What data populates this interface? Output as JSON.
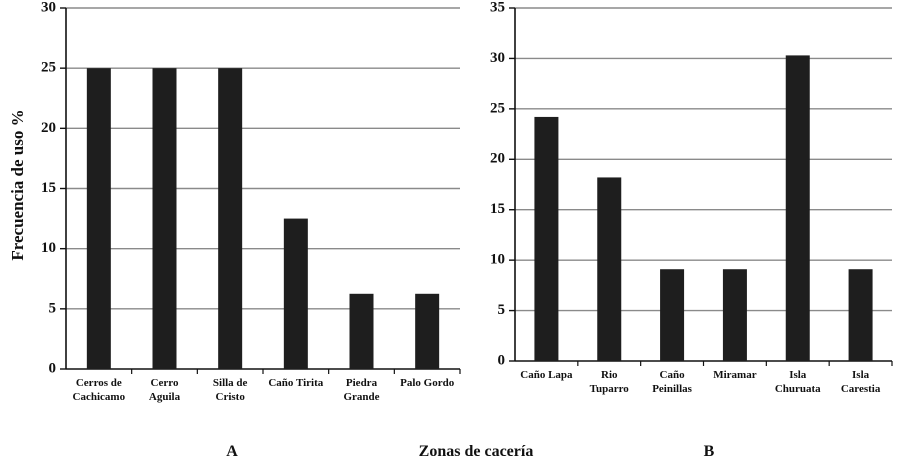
{
  "figure": {
    "ylabel": "Frecuencia de uso %",
    "xlabel": "Zonas de cacería"
  },
  "chart_data": [
    {
      "type": "bar",
      "panel": "A",
      "categories": [
        [
          "Cerros de",
          "Cachicamo"
        ],
        [
          "Cerro",
          "Aguila"
        ],
        [
          "Silla de",
          "Cristo"
        ],
        [
          "Caño Tirita"
        ],
        [
          "Piedra",
          "Grande"
        ],
        [
          "Palo Gordo"
        ]
      ],
      "values": [
        25,
        25,
        25,
        12.5,
        6.25,
        6.25
      ],
      "ylim": [
        0,
        30
      ],
      "yticks": [
        0,
        5,
        10,
        15,
        20,
        25,
        30
      ],
      "grid": true,
      "bar_color": "#1e1e1e"
    },
    {
      "type": "bar",
      "panel": "B",
      "categories": [
        [
          "Caño Lapa"
        ],
        [
          "Rio",
          "Tuparro"
        ],
        [
          "Caño",
          "Peinillas"
        ],
        [
          "Miramar"
        ],
        [
          "Isla",
          "Churuata"
        ],
        [
          "Isla",
          "Carestia"
        ]
      ],
      "values": [
        24.2,
        18.2,
        9.1,
        9.1,
        30.3,
        9.1
      ],
      "ylim": [
        0,
        35
      ],
      "yticks": [
        0,
        5,
        10,
        15,
        20,
        25,
        30,
        35
      ],
      "grid": true,
      "bar_color": "#1e1e1e"
    }
  ]
}
